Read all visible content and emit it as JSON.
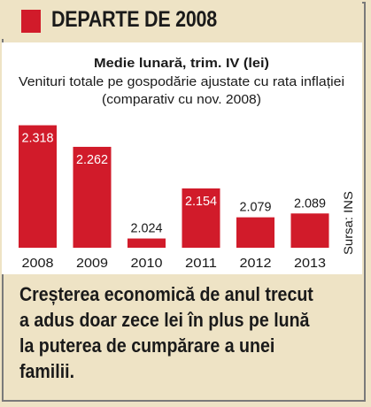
{
  "header": {
    "title": "DEPARTE DE 2008"
  },
  "chart_data": {
    "type": "bar",
    "title": "Medie lunară, trim. IV (lei)",
    "subtitle_lines": [
      "Venituri totale pe gospodărie ajustate cu rata inflației",
      "(comparativ cu nov. 2008)"
    ],
    "categories": [
      "2008",
      "2009",
      "2010",
      "2011",
      "2012",
      "2013"
    ],
    "values": [
      2318,
      2262,
      2024,
      2154,
      2079,
      2089
    ],
    "value_labels": [
      "2.318",
      "2.262",
      "2.024",
      "2.154",
      "2.079",
      "2.089"
    ],
    "ylim": [
      2000,
      2340
    ],
    "bar_color": "#d11b2a",
    "source": "Sursa: INS"
  },
  "footer": {
    "text": "Creșterea economică de anul trecut\na adus doar zece lei în plus pe lună\nla puterea de cumpărare a unei\nfamilii."
  },
  "colors": {
    "background": "#eee3c5",
    "accent": "#d11b2a",
    "panel": "#ffffff"
  }
}
